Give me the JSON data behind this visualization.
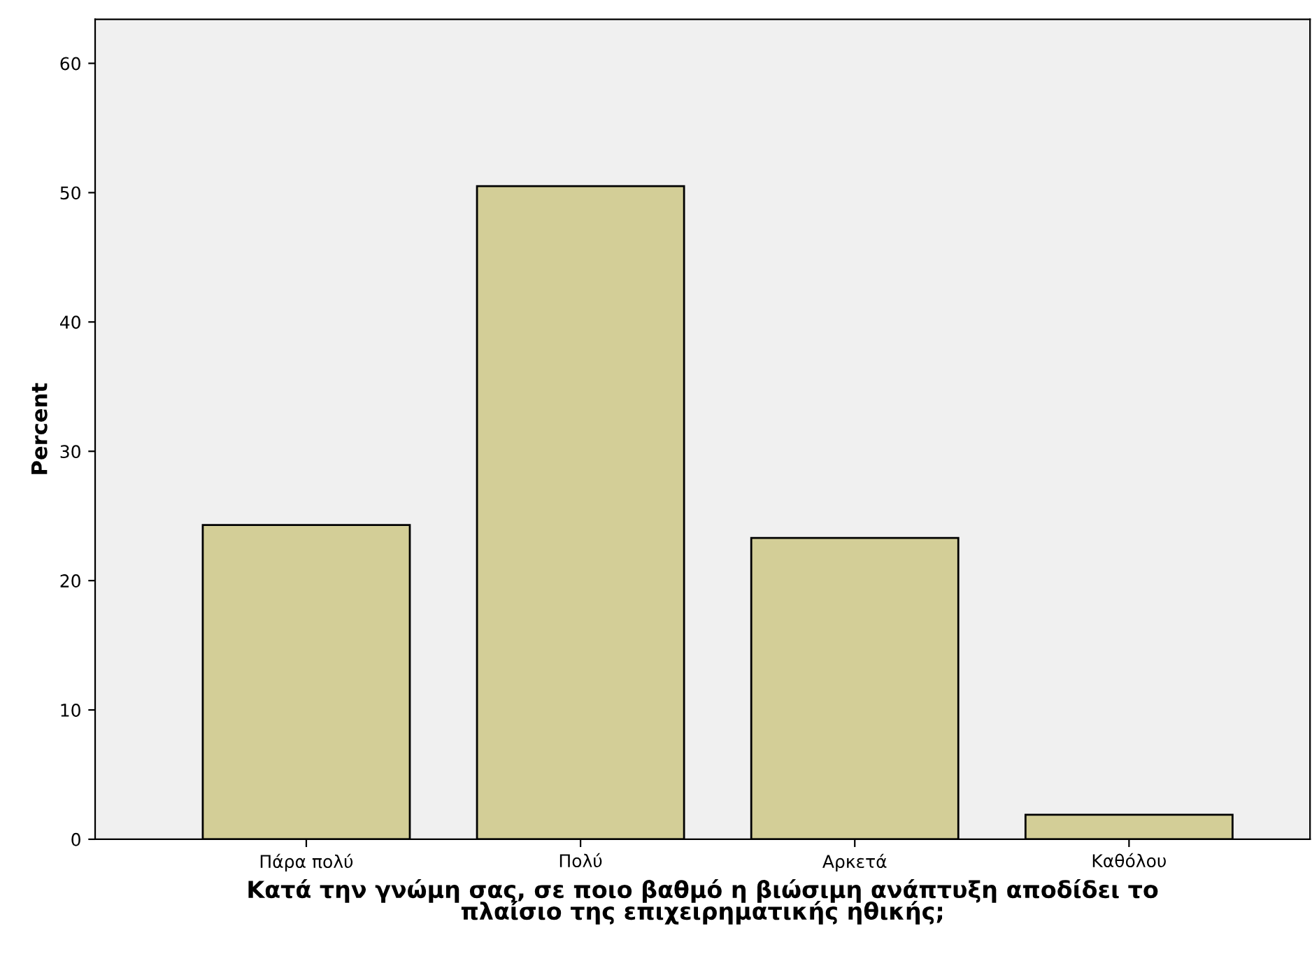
{
  "chart_data": {
    "type": "bar",
    "xlabel": "Κατά την γνώμη σας, σε ποιο βαθμό η βιώσιμη ανάπτυξη αποδίδει το\nπλαίσιο της επιχειρηματικής ηθικής;",
    "ylabel": "Percent",
    "categories": [
      "Πάρα πολύ",
      "Πολύ",
      "Αρκετά",
      "Καθόλου"
    ],
    "values": [
      24.3,
      50.5,
      23.3,
      1.9
    ],
    "color": "#d3ce97",
    "ylim": [
      0,
      63.4
    ],
    "yticks": [
      0,
      10,
      20,
      30,
      40,
      50,
      60
    ],
    "grid": false
  }
}
